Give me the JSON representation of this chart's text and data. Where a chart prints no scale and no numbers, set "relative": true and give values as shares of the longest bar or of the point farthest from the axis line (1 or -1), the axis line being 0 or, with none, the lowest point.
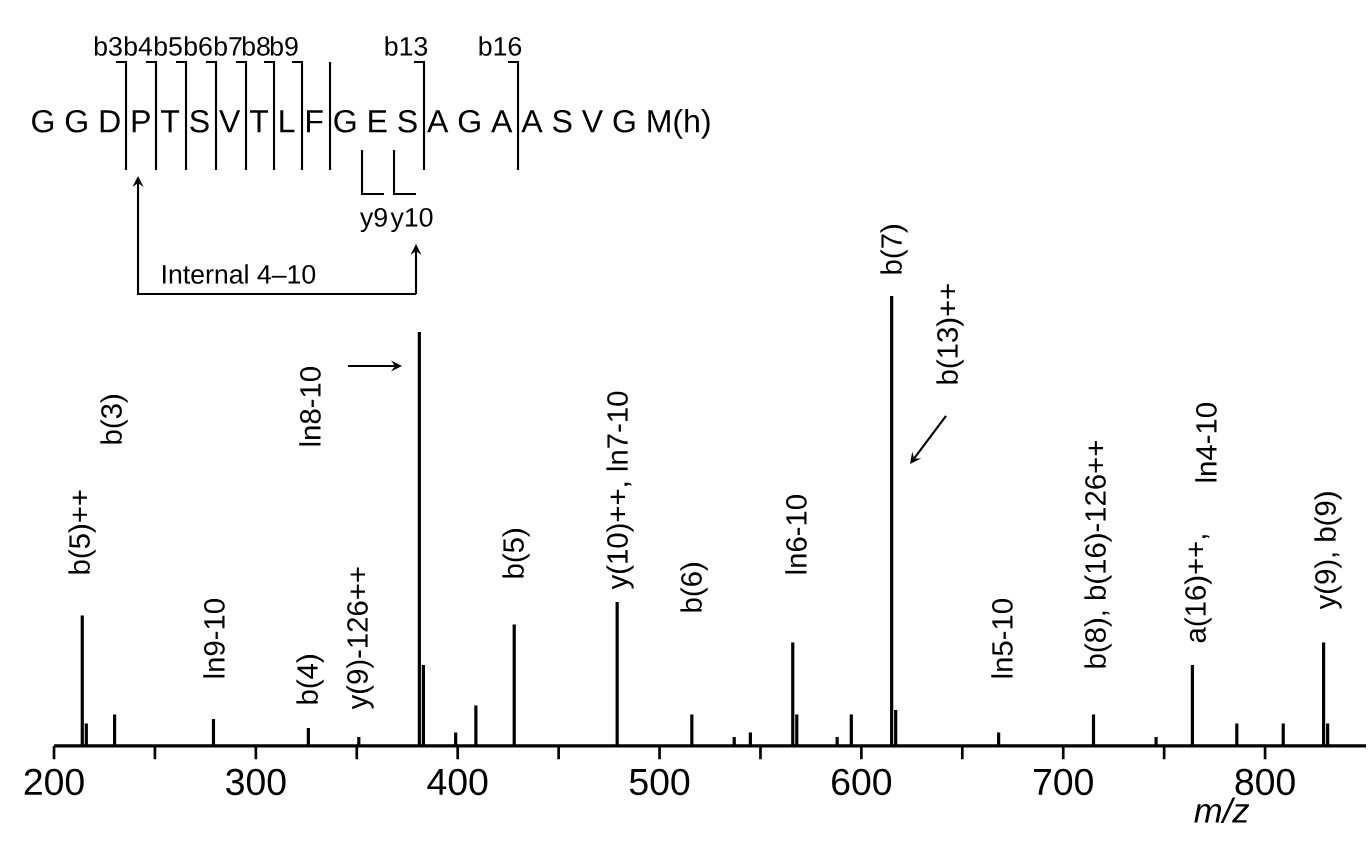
{
  "chart_data": {
    "type": "bar",
    "relative": true,
    "xlabel": "m/z",
    "color": "#000000",
    "x": [
      214,
      216,
      230,
      279,
      326,
      351,
      381,
      383,
      399,
      409,
      428,
      479,
      516,
      537,
      545,
      566,
      568,
      588,
      595,
      615,
      617,
      668,
      715,
      746,
      764,
      786,
      809,
      829,
      831
    ],
    "values": [
      0.29,
      0.05,
      0.07,
      0.06,
      0.04,
      0.02,
      0.92,
      0.18,
      0.03,
      0.09,
      0.27,
      0.32,
      0.07,
      0.02,
      0.03,
      0.23,
      0.07,
      0.02,
      0.07,
      1.0,
      0.08,
      0.03,
      0.07,
      0.02,
      0.18,
      0.05,
      0.05,
      0.23,
      0.05
    ],
    "xlim": [
      200,
      850
    ],
    "xticks": [
      200,
      {
        "value": 250,
        "label": null
      },
      300,
      {
        "value": 350,
        "label": null
      },
      400,
      {
        "value": 450,
        "label": null
      },
      500,
      {
        "value": 550,
        "label": null
      },
      600,
      {
        "value": 650,
        "label": null
      },
      700,
      {
        "value": 750,
        "label": null
      },
      800
    ],
    "annotations": [
      "G G D P T S V T L F G E S A G A A S V G M(h)",
      "b3",
      "b4",
      "b5",
      "b6",
      "b7",
      "b8",
      "b9",
      "b13",
      "b16",
      "y9",
      "y10",
      "Internal 4–10",
      "b(5)++",
      "b(3)",
      "ln9-10",
      "b(4)",
      "y(9)-126++",
      "ln8-10",
      "b(5)",
      "y(10)++, ln7-10",
      "b(6)",
      "ln6-10",
      "b(7)",
      "b(13)++",
      "ln5-10",
      "b(8), b(16)-126++",
      "a(16)++,",
      "ln4-10",
      "y(9), b(9)"
    ]
  }
}
